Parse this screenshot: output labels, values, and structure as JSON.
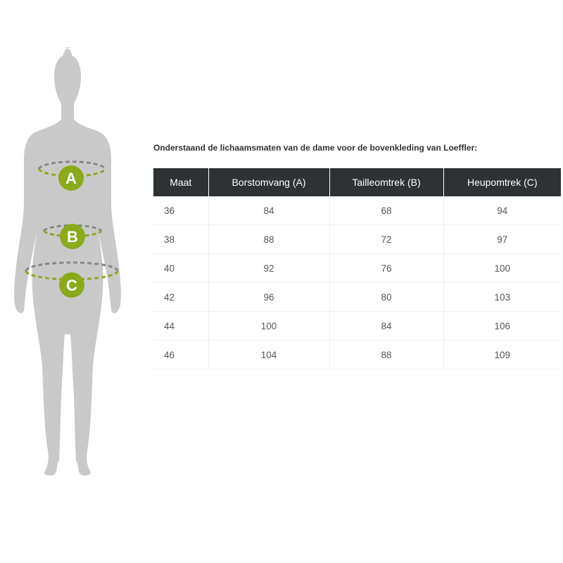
{
  "figure": {
    "labels": [
      "A",
      "B",
      "C"
    ],
    "accent": "#8aaa1c",
    "body_color": "#c9c9c9"
  },
  "caption": "Onderstaand de lichaamsmaten van de dame voor de bovenkleding van Loeffler:",
  "table": {
    "headers": [
      "Maat",
      "Borstomvang (A)",
      "Tailleomtrek (B)",
      "Heupomtrek (C)"
    ],
    "rows": [
      [
        "36",
        "84",
        "68",
        "94"
      ],
      [
        "38",
        "88",
        "72",
        "97"
      ],
      [
        "40",
        "92",
        "76",
        "100"
      ],
      [
        "42",
        "96",
        "80",
        "103"
      ],
      [
        "44",
        "100",
        "84",
        "106"
      ],
      [
        "46",
        "104",
        "88",
        "109"
      ]
    ]
  }
}
